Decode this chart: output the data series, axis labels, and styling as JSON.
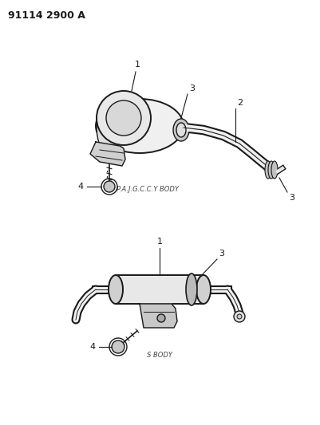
{
  "title": "91114 2900 A",
  "bg_color": "#ffffff",
  "line_color": "#1a1a1a",
  "label_color": "#1a1a1a",
  "caption1": "P.A.J.G.C.C.Y BODY",
  "caption2": "S BODY"
}
